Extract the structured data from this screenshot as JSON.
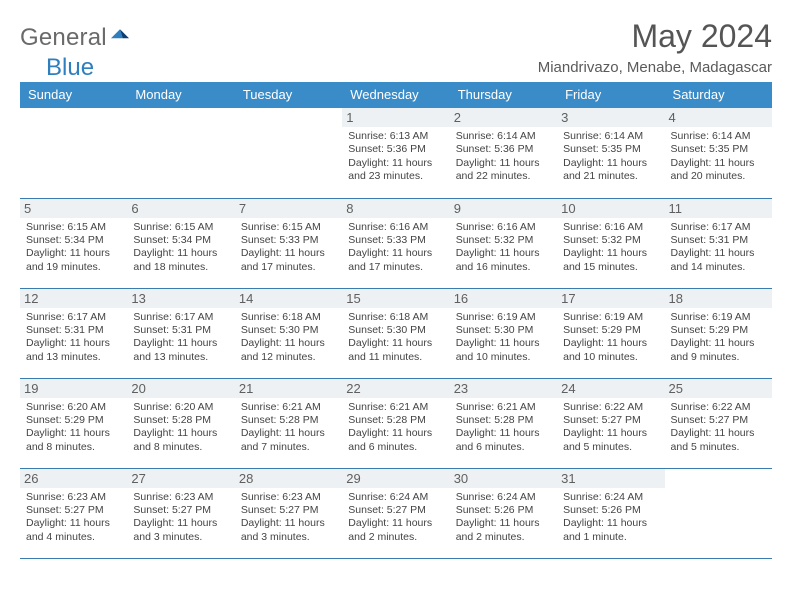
{
  "brand": {
    "word1": "General",
    "word2": "Blue"
  },
  "title": "May 2024",
  "subtitle": "Miandrivazo, Menabe, Madagascar",
  "colors": {
    "header_bg": "#3a8cc9",
    "header_fg": "#ffffff",
    "daynum_bg": "#eef1f3",
    "row_border": "#3a7cae",
    "brand_gray": "#6a6a6a",
    "brand_blue": "#2f7fbf",
    "text": "#444444",
    "title_color": "#555555"
  },
  "weekdays": [
    "Sunday",
    "Monday",
    "Tuesday",
    "Wednesday",
    "Thursday",
    "Friday",
    "Saturday"
  ],
  "weeks": [
    [
      null,
      null,
      null,
      {
        "n": "1",
        "sunrise": "6:13 AM",
        "sunset": "5:36 PM",
        "dl": "11 hours and 23 minutes."
      },
      {
        "n": "2",
        "sunrise": "6:14 AM",
        "sunset": "5:36 PM",
        "dl": "11 hours and 22 minutes."
      },
      {
        "n": "3",
        "sunrise": "6:14 AM",
        "sunset": "5:35 PM",
        "dl": "11 hours and 21 minutes."
      },
      {
        "n": "4",
        "sunrise": "6:14 AM",
        "sunset": "5:35 PM",
        "dl": "11 hours and 20 minutes."
      }
    ],
    [
      {
        "n": "5",
        "sunrise": "6:15 AM",
        "sunset": "5:34 PM",
        "dl": "11 hours and 19 minutes."
      },
      {
        "n": "6",
        "sunrise": "6:15 AM",
        "sunset": "5:34 PM",
        "dl": "11 hours and 18 minutes."
      },
      {
        "n": "7",
        "sunrise": "6:15 AM",
        "sunset": "5:33 PM",
        "dl": "11 hours and 17 minutes."
      },
      {
        "n": "8",
        "sunrise": "6:16 AM",
        "sunset": "5:33 PM",
        "dl": "11 hours and 17 minutes."
      },
      {
        "n": "9",
        "sunrise": "6:16 AM",
        "sunset": "5:32 PM",
        "dl": "11 hours and 16 minutes."
      },
      {
        "n": "10",
        "sunrise": "6:16 AM",
        "sunset": "5:32 PM",
        "dl": "11 hours and 15 minutes."
      },
      {
        "n": "11",
        "sunrise": "6:17 AM",
        "sunset": "5:31 PM",
        "dl": "11 hours and 14 minutes."
      }
    ],
    [
      {
        "n": "12",
        "sunrise": "6:17 AM",
        "sunset": "5:31 PM",
        "dl": "11 hours and 13 minutes."
      },
      {
        "n": "13",
        "sunrise": "6:17 AM",
        "sunset": "5:31 PM",
        "dl": "11 hours and 13 minutes."
      },
      {
        "n": "14",
        "sunrise": "6:18 AM",
        "sunset": "5:30 PM",
        "dl": "11 hours and 12 minutes."
      },
      {
        "n": "15",
        "sunrise": "6:18 AM",
        "sunset": "5:30 PM",
        "dl": "11 hours and 11 minutes."
      },
      {
        "n": "16",
        "sunrise": "6:19 AM",
        "sunset": "5:30 PM",
        "dl": "11 hours and 10 minutes."
      },
      {
        "n": "17",
        "sunrise": "6:19 AM",
        "sunset": "5:29 PM",
        "dl": "11 hours and 10 minutes."
      },
      {
        "n": "18",
        "sunrise": "6:19 AM",
        "sunset": "5:29 PM",
        "dl": "11 hours and 9 minutes."
      }
    ],
    [
      {
        "n": "19",
        "sunrise": "6:20 AM",
        "sunset": "5:29 PM",
        "dl": "11 hours and 8 minutes."
      },
      {
        "n": "20",
        "sunrise": "6:20 AM",
        "sunset": "5:28 PM",
        "dl": "11 hours and 8 minutes."
      },
      {
        "n": "21",
        "sunrise": "6:21 AM",
        "sunset": "5:28 PM",
        "dl": "11 hours and 7 minutes."
      },
      {
        "n": "22",
        "sunrise": "6:21 AM",
        "sunset": "5:28 PM",
        "dl": "11 hours and 6 minutes."
      },
      {
        "n": "23",
        "sunrise": "6:21 AM",
        "sunset": "5:28 PM",
        "dl": "11 hours and 6 minutes."
      },
      {
        "n": "24",
        "sunrise": "6:22 AM",
        "sunset": "5:27 PM",
        "dl": "11 hours and 5 minutes."
      },
      {
        "n": "25",
        "sunrise": "6:22 AM",
        "sunset": "5:27 PM",
        "dl": "11 hours and 5 minutes."
      }
    ],
    [
      {
        "n": "26",
        "sunrise": "6:23 AM",
        "sunset": "5:27 PM",
        "dl": "11 hours and 4 minutes."
      },
      {
        "n": "27",
        "sunrise": "6:23 AM",
        "sunset": "5:27 PM",
        "dl": "11 hours and 3 minutes."
      },
      {
        "n": "28",
        "sunrise": "6:23 AM",
        "sunset": "5:27 PM",
        "dl": "11 hours and 3 minutes."
      },
      {
        "n": "29",
        "sunrise": "6:24 AM",
        "sunset": "5:27 PM",
        "dl": "11 hours and 2 minutes."
      },
      {
        "n": "30",
        "sunrise": "6:24 AM",
        "sunset": "5:26 PM",
        "dl": "11 hours and 2 minutes."
      },
      {
        "n": "31",
        "sunrise": "6:24 AM",
        "sunset": "5:26 PM",
        "dl": "11 hours and 1 minute."
      },
      null
    ]
  ],
  "labels": {
    "sunrise_prefix": "Sunrise: ",
    "sunset_prefix": "Sunset: ",
    "daylight_prefix": "Daylight: "
  }
}
